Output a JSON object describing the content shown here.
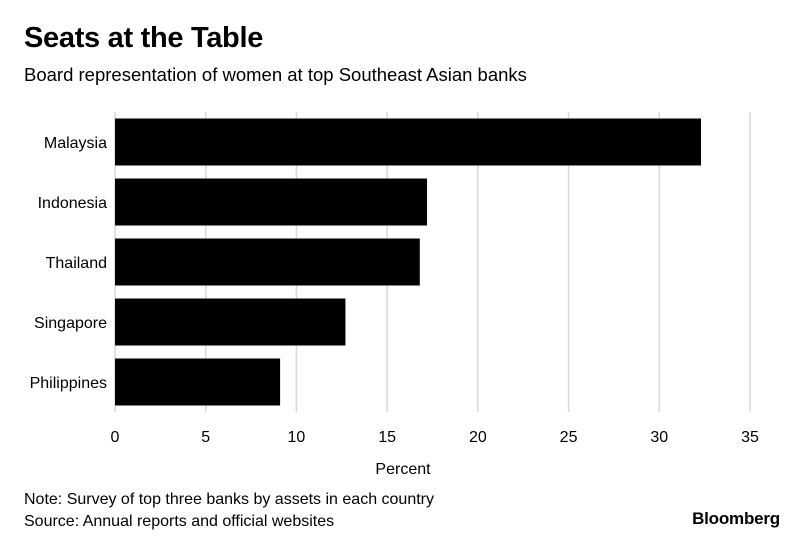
{
  "header": {
    "title": "Seats at the Table",
    "subtitle": "Board representation of women at top Southeast Asian banks"
  },
  "chart_data": {
    "type": "bar",
    "orientation": "horizontal",
    "categories": [
      "Malaysia",
      "Indonesia",
      "Thailand",
      "Singapore",
      "Philippines"
    ],
    "values": [
      32.3,
      17.2,
      16.8,
      12.7,
      9.1
    ],
    "xlabel": "Percent",
    "ylabel": "",
    "xlim": [
      0,
      35
    ],
    "xticks": [
      0,
      5,
      10,
      15,
      20,
      25,
      30,
      35
    ],
    "grid": "vertical",
    "bar_color": "#000000",
    "grid_color": "#d9d9d9"
  },
  "footer": {
    "note": "Note: Survey of top three banks by assets in each country",
    "source": "Source: Annual reports and official websites",
    "brand": "Bloomberg"
  }
}
